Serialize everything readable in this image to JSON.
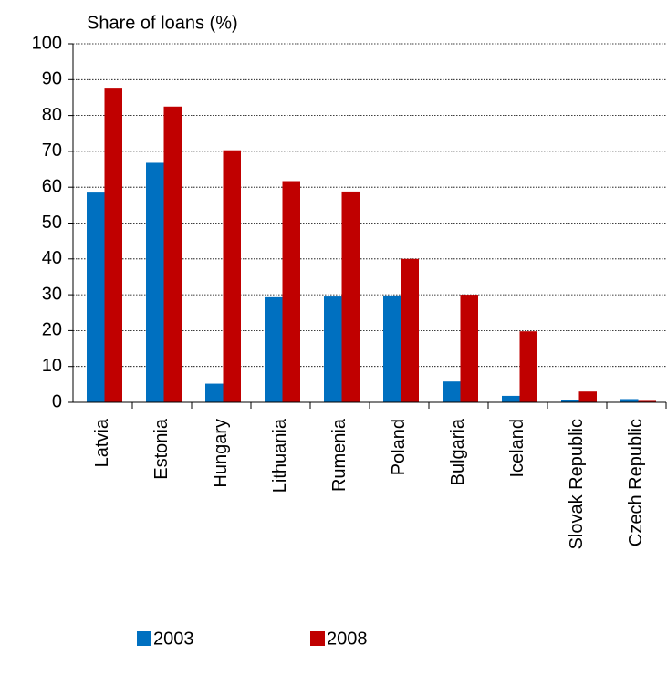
{
  "chart_data": {
    "type": "bar",
    "y_label": "Share of loans (%)",
    "categories": [
      "Latvia",
      "Estonia",
      "Hungary",
      "Lithuania",
      "Rumenia",
      "Poland",
      "Bulgaria",
      "Iceland",
      "Slovak Republic",
      "Czech Republic"
    ],
    "series": [
      {
        "name": "2003",
        "color": "#0070c0",
        "values": [
          58.5,
          66.8,
          5.2,
          29.3,
          29.5,
          29.8,
          5.8,
          1.8,
          0.7,
          0.9
        ]
      },
      {
        "name": "2008",
        "color": "#c00000",
        "values": [
          87.5,
          82.5,
          70.3,
          61.7,
          58.8,
          40,
          30,
          19.8,
          3,
          0.4
        ]
      }
    ],
    "ylim": [
      0,
      100
    ],
    "yticks": [
      0,
      10,
      20,
      30,
      40,
      50,
      60,
      70,
      80,
      90,
      100
    ],
    "grid": true,
    "legend": "bottom"
  }
}
